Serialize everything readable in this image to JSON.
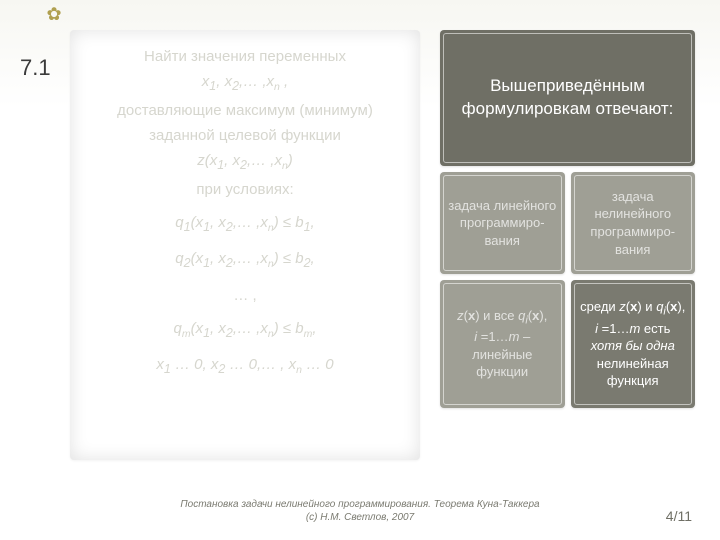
{
  "section_number": "7.1",
  "accent_glyph": "✿",
  "accent_color": "#b0a050",
  "left": {
    "l1": "Найти значения переменных",
    "l2_html": "x₁, x₂,… ,xₙ ,",
    "l3": "доставляющие максимум (минимум)",
    "l4": "заданной целевой функции",
    "l5_html": "z(x₁, x₂,… ,xₙ)",
    "l6": "при условиях:",
    "q1_html": "q₁(x₁, x₂,… ,xₙ) ≤ b₁,",
    "q2_html": "q₂(x₁, x₂,… ,xₙ) ≤ b₂,",
    "dots": "… ,",
    "qm_html": "qₘ(x₁, x₂,… ,xₙ) ≤ bₘ,",
    "nn_html": "x₁ … 0, x₂ … 0,… , xₙ … 0"
  },
  "right": {
    "top_bg": "#6f6f65",
    "top_text": "Вышеприведённым формулировкам отвечают:",
    "mid_bg": "#9f9f95",
    "mid_left": "задача линейного программиро-вания",
    "mid_right": "задача нелинейного программиро-вания",
    "bot_left_bg": "#9f9f95",
    "bot_right_bg": "#7a7a70",
    "bot_left_html": "<span class='i'>z</span>(<b>x</b>) и все <span class='i'>q<sub>i</sub></span>(<b>x</b>),<br><span class='i'>i</span> =1…<span class='i'>m</span> –<br>линейные функции",
    "bot_right_html": "среди <span class='i'>z</span>(<b>x</b>) и <span class='i'>q<sub>i</sub></span>(<b>x</b>),<br><span class='i'>i</span> =1…<span class='i'>m</span> есть<br><span class='i'>хотя бы одна</span> нелинейная функция"
  },
  "footer": {
    "line1": "Постановка задачи нелинейного программирования. Теорема Куна-Таккера",
    "line2": "(с) Н.М. Светлов, 2007"
  },
  "page": {
    "current": "4",
    "total": "11",
    "sep": "/"
  }
}
